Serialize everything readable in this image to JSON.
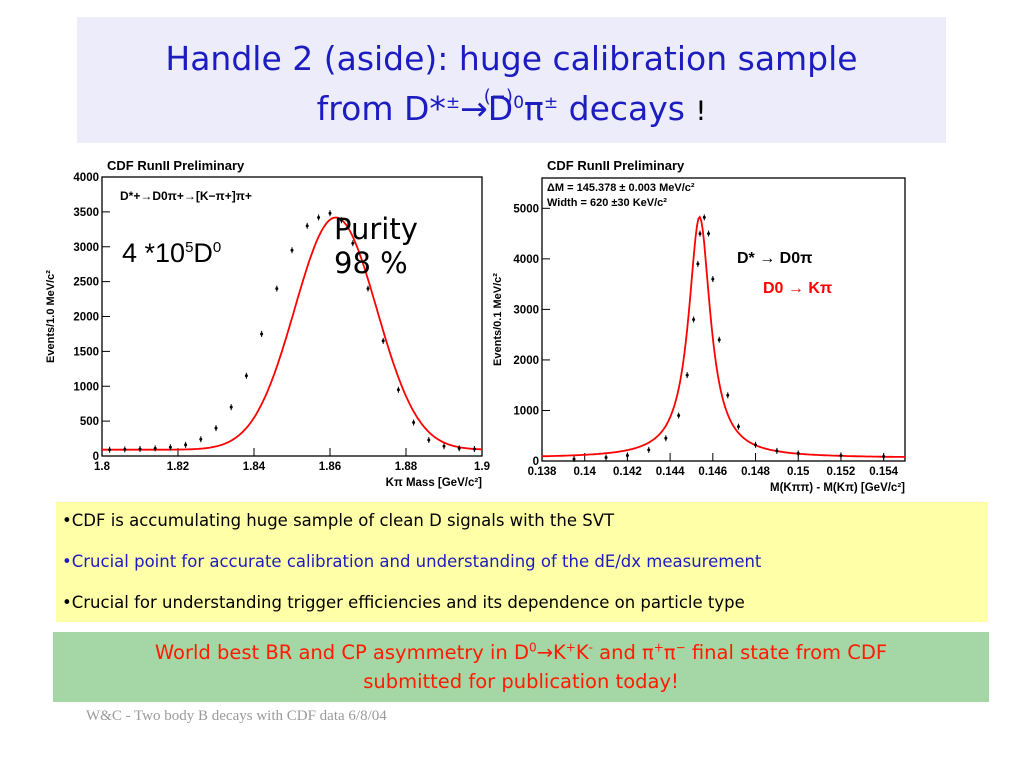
{
  "slide": {
    "title_line1": "Handle 2 (aside): huge calibration sample",
    "title_line2_parts": {
      "from": "from D*",
      "pm1": "±",
      "arrow": "→",
      "d": "D",
      "zero": "0",
      "pi": "π",
      "pm2": "±",
      "decays": " decays",
      "overbar": "(−)",
      "excl": "!"
    },
    "bullets": [
      "•CDF  is accumulating huge sample of clean D signals with the SVT",
      "•Crucial point for accurate calibration and understanding of the dE/dx measurement",
      "•Crucial for understanding trigger efficiencies and its dependence on particle type"
    ],
    "result_line1_parts": {
      "a": "World best BR and CP asymmetry in D",
      "zero": "0",
      "arrow": "→",
      "k1": "K",
      "plus": "+",
      "k2": "K",
      "minus": "-",
      "and": " and ",
      "pi1": "π",
      "plus2": "+",
      "pi2": "π",
      "minus2": "−",
      "b": " final state from CDF"
    },
    "result_line2": "submitted for publication today!",
    "footer": "W&C - Two body B decays with CDF data 6/8/04",
    "annot_count_base": "4 *10",
    "annot_count_exp": "5",
    "annot_count_d": "D",
    "annot_count_zero": "0",
    "annot_purity_1": "Purity",
    "annot_purity_2": "98 %",
    "colors": {
      "title": "#1c1cc0",
      "title_bg": "#ececfb",
      "bullet_bg": "#ffffa8",
      "result_bg": "#a5d6a5",
      "result_text": "#ff1a00",
      "fit_curve": "#ff0000"
    }
  },
  "chart_data": [
    {
      "type": "scatter",
      "title": "CDF RunII Preliminary",
      "legend_text": "D*+→D0π+→[K−π+]π+",
      "xlabel": "Kπ Mass [GeV/c²]",
      "ylabel": "Events/1.0 MeV/c²",
      "xlim": [
        1.8,
        1.9
      ],
      "ylim": [
        0,
        4000
      ],
      "x_ticks": [
        1.8,
        1.82,
        1.84,
        1.86,
        1.88,
        1.9
      ],
      "x_tick_labels": [
        "1.8",
        "1.82",
        "1.84",
        "1.86",
        "1.88",
        "1.9"
      ],
      "y_ticks": [
        0,
        500,
        1000,
        1500,
        2000,
        2500,
        3000,
        3500,
        4000
      ],
      "y_tick_labels": [
        "0",
        "500",
        "1000",
        "1500",
        "2000",
        "2500",
        "3000",
        "3500",
        "4000"
      ],
      "x": [
        1.802,
        1.806,
        1.81,
        1.814,
        1.818,
        1.822,
        1.826,
        1.83,
        1.834,
        1.838,
        1.842,
        1.846,
        1.85,
        1.854,
        1.857,
        1.86,
        1.863,
        1.866,
        1.87,
        1.874,
        1.878,
        1.882,
        1.886,
        1.89,
        1.894,
        1.898
      ],
      "y": [
        90,
        95,
        100,
        110,
        125,
        160,
        240,
        400,
        700,
        1150,
        1750,
        2400,
        2950,
        3300,
        3420,
        3480,
        3380,
        3050,
        2400,
        1650,
        950,
        480,
        230,
        140,
        110,
        100
      ],
      "fit": {
        "shape": "gaussian",
        "mean": 1.8615,
        "sigma": 0.0108,
        "amplitude": 3330,
        "background": 90
      },
      "grid": false
    },
    {
      "type": "scatter",
      "title": "CDF RunII Preliminary",
      "stat_lines": [
        "ΔM = 145.378  ± 0.003 MeV/c²",
        "Width = 620  ±30 KeV/c²"
      ],
      "label_line1": "D* → D0π",
      "label_line2": "D0 → Kπ",
      "xlabel": "M(Kππ) - M(Kπ) [GeV/c²]",
      "ylabel": "Events/0.1 MeV/c²",
      "xlim": [
        0.138,
        0.155
      ],
      "ylim": [
        0,
        5600
      ],
      "x_ticks": [
        0.138,
        0.14,
        0.142,
        0.144,
        0.146,
        0.148,
        0.15,
        0.152,
        0.154
      ],
      "x_tick_labels": [
        "0.138",
        "0.14",
        "0.142",
        "0.144",
        "0.146",
        "0.148",
        "0.15",
        "0.152",
        "0.154"
      ],
      "y_ticks": [
        0,
        1000,
        2000,
        3000,
        4000,
        5000
      ],
      "y_tick_labels": [
        "0",
        "1000",
        "2000",
        "3000",
        "4000",
        "5000"
      ],
      "x": [
        0.1395,
        0.141,
        0.142,
        0.143,
        0.1438,
        0.1444,
        0.1448,
        0.1451,
        0.1453,
        0.1454,
        0.1456,
        0.1458,
        0.146,
        0.1463,
        0.1467,
        0.1472,
        0.148,
        0.149,
        0.15,
        0.152,
        0.154
      ],
      "y": [
        40,
        70,
        110,
        220,
        450,
        900,
        1700,
        2800,
        3900,
        4500,
        4820,
        4500,
        3600,
        2400,
        1300,
        680,
        320,
        200,
        150,
        110,
        90
      ],
      "fit": {
        "shape": "lorentzian",
        "mean": 0.145378,
        "width": 0.00062,
        "amplitude": 4770,
        "background": 60
      },
      "grid": false
    }
  ]
}
